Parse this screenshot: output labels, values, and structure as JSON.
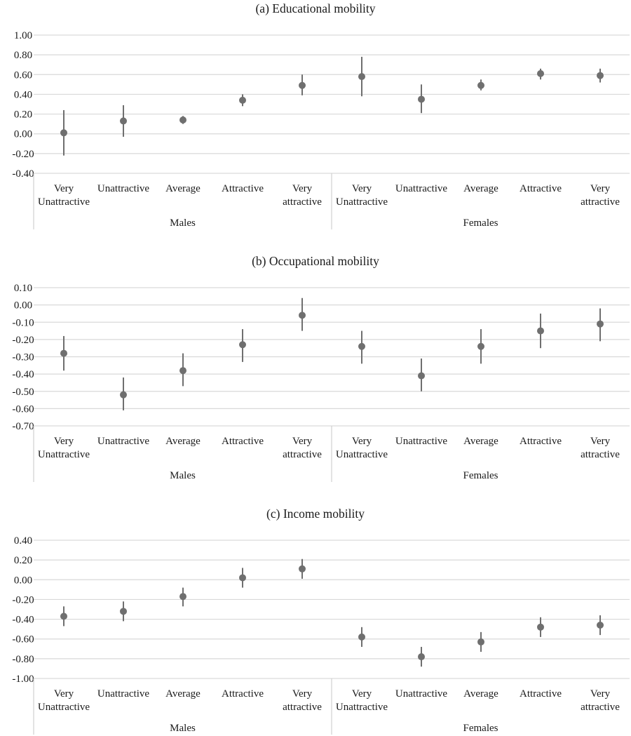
{
  "chart_data": [
    {
      "type": "scatter",
      "subtype": "point-with-error-bars",
      "title": "(a) Educational mobility",
      "xlabel": "",
      "ylabel": "",
      "ylim": [
        -0.4,
        1.0
      ],
      "yticks": [
        "1.00",
        "0.80",
        "0.60",
        "0.40",
        "0.20",
        "0.00",
        "-0.20",
        "-0.40"
      ],
      "ytick_values": [
        1.0,
        0.8,
        0.6,
        0.4,
        0.2,
        0.0,
        -0.2,
        -0.4
      ],
      "grid": true,
      "groups": [
        "Males",
        "Females"
      ],
      "categories": [
        [
          "Very",
          "Unattractive"
        ],
        [
          "Unattractive"
        ],
        [
          "Average"
        ],
        [
          "Attractive"
        ],
        [
          "Very",
          "attractive"
        ]
      ],
      "estimates": [
        0.01,
        0.13,
        0.14,
        0.34,
        0.49,
        0.58,
        0.35,
        0.49,
        0.61,
        0.59
      ],
      "lower": [
        -0.22,
        -0.03,
        0.1,
        0.28,
        0.39,
        0.38,
        0.21,
        0.44,
        0.55,
        0.52
      ],
      "upper": [
        0.24,
        0.29,
        0.18,
        0.4,
        0.6,
        0.78,
        0.5,
        0.55,
        0.66,
        0.66
      ]
    },
    {
      "type": "scatter",
      "subtype": "point-with-error-bars",
      "title": "(b) Occupational mobility",
      "xlabel": "",
      "ylabel": "",
      "ylim": [
        -0.7,
        0.1
      ],
      "yticks": [
        "0.10",
        "0.00",
        "-0.10",
        "-0.20",
        "-0.30",
        "-0.40",
        "-0.50",
        "-0.60",
        "-0.70"
      ],
      "ytick_values": [
        0.1,
        0.0,
        -0.1,
        -0.2,
        -0.3,
        -0.4,
        -0.5,
        -0.6,
        -0.7
      ],
      "grid": true,
      "groups": [
        "Males",
        "Females"
      ],
      "categories": [
        [
          "Very",
          "Unattractive"
        ],
        [
          "Unattractive"
        ],
        [
          "Average"
        ],
        [
          "Attractive"
        ],
        [
          "Very",
          "attractive"
        ]
      ],
      "estimates": [
        -0.28,
        -0.52,
        -0.38,
        -0.23,
        -0.06,
        -0.24,
        -0.41,
        -0.24,
        -0.15,
        -0.11
      ],
      "lower": [
        -0.38,
        -0.61,
        -0.47,
        -0.33,
        -0.15,
        -0.34,
        -0.5,
        -0.34,
        -0.25,
        -0.21
      ],
      "upper": [
        -0.18,
        -0.42,
        -0.28,
        -0.14,
        0.04,
        -0.15,
        -0.31,
        -0.14,
        -0.05,
        -0.02
      ]
    },
    {
      "type": "scatter",
      "subtype": "point-with-error-bars",
      "title": "(c) Income mobility",
      "xlabel": "",
      "ylabel": "",
      "ylim": [
        -1.0,
        0.4
      ],
      "yticks": [
        "0.40",
        "0.20",
        "0.00",
        "-0.20",
        "-0.40",
        "-0.60",
        "-0.80",
        "-1.00"
      ],
      "ytick_values": [
        0.4,
        0.2,
        0.0,
        -0.2,
        -0.4,
        -0.6,
        -0.8,
        -1.0
      ],
      "grid": true,
      "groups": [
        "Males",
        "Females"
      ],
      "categories": [
        [
          "Very",
          "Unattractive"
        ],
        [
          "Unattractive"
        ],
        [
          "Average"
        ],
        [
          "Attractive"
        ],
        [
          "Very",
          "attractive"
        ]
      ],
      "estimates": [
        -0.37,
        -0.32,
        -0.17,
        0.02,
        0.11,
        -0.58,
        -0.78,
        -0.63,
        -0.48,
        -0.46
      ],
      "lower": [
        -0.47,
        -0.42,
        -0.27,
        -0.08,
        0.01,
        -0.68,
        -0.88,
        -0.73,
        -0.58,
        -0.56
      ],
      "upper": [
        -0.27,
        -0.22,
        -0.08,
        0.12,
        0.21,
        -0.48,
        -0.68,
        -0.53,
        -0.38,
        -0.36
      ]
    }
  ],
  "colors": {
    "point": "#6f6f6f",
    "error_bar": "#6f6f6f",
    "grid": "#d9d9d9",
    "axis": "#d0d0d0",
    "text": "#1a1a1a"
  }
}
